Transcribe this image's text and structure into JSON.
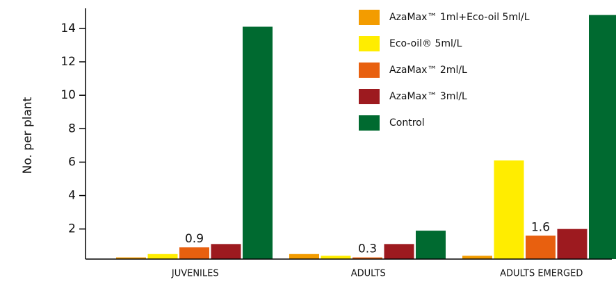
{
  "chart_data": {
    "type": "bar",
    "y_label": "No. per plant",
    "categories": [
      "JUVENILES",
      "ADULTS",
      "ADULTS EMERGED"
    ],
    "series": [
      {
        "name": "AzaMax™ 1ml+Eco-oil 5ml/L",
        "color": "#f39c00",
        "values": [
          0.3,
          0.5,
          0.4
        ]
      },
      {
        "name": "Eco-oil® 5ml/L",
        "color": "#ffed00",
        "values": [
          0.5,
          0.4,
          6.1
        ]
      },
      {
        "name": "AzaMax™ 2ml/L",
        "color": "#e8600f",
        "values": [
          0.9,
          0.3,
          1.6
        ]
      },
      {
        "name": "AzaMax™ 3ml/L",
        "color": "#9d1a1f",
        "values": [
          1.1,
          1.1,
          2.0
        ]
      },
      {
        "name": "Control",
        "color": "#006a30",
        "values": [
          14.1,
          1.9,
          14.8
        ]
      }
    ],
    "annotated": [
      [
        2,
        0
      ],
      [
        2,
        1
      ],
      [
        2,
        2
      ]
    ],
    "ylim": [
      0.2,
      15.2
    ],
    "yticks": [
      2,
      4,
      6,
      8,
      10,
      12,
      14
    ],
    "legend": "top-right"
  }
}
